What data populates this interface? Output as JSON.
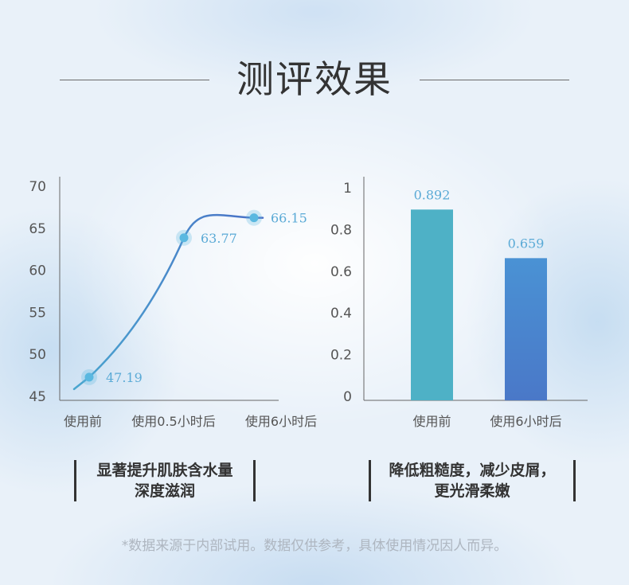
{
  "page": {
    "title": "测评效果",
    "caption_left": [
      "显著提升肌肤含水量",
      "深度滋润"
    ],
    "caption_right": [
      "降低粗糙度，减少皮屑，",
      "更光滑柔嫩"
    ],
    "footnote": "*数据来源于内部试用。数据仅供参考，具体使用情况因人而异。"
  },
  "colors": {
    "line_start": "#4aa6cf",
    "line_end": "#4a6fc6",
    "marker": "#5ab8e0",
    "label": "#5aaad6",
    "bar1": "#4eb1c6",
    "bar2_top": "#4a92d4",
    "bar2_bottom": "#4a78c8",
    "axis": "#666666",
    "tick_text": "#555555"
  },
  "chart_data": [
    {
      "type": "line",
      "categories": [
        "使用前",
        "使用0.5小时后",
        "使用6小时后"
      ],
      "values": [
        47.19,
        63.77,
        66.15
      ],
      "labels": [
        "47.19",
        "63.77",
        "66.15"
      ],
      "ylim": [
        45,
        70
      ],
      "yticks": [
        45,
        50,
        55,
        60,
        65,
        70
      ],
      "ytick_labels": [
        "45",
        "50",
        "55",
        "60",
        "65",
        "70"
      ],
      "smooth": true,
      "grid": false
    },
    {
      "type": "bar",
      "categories": [
        "使用前",
        "使用6小时后"
      ],
      "values": [
        0.892,
        0.659
      ],
      "labels": [
        "0.892",
        "0.659"
      ],
      "ylim": [
        0,
        1
      ],
      "yticks": [
        0,
        0.2,
        0.4,
        0.6,
        0.8,
        1
      ],
      "ytick_labels": [
        "0",
        "0.2",
        "0.4",
        "0.6",
        "0.8",
        "1"
      ],
      "grid": false
    }
  ]
}
